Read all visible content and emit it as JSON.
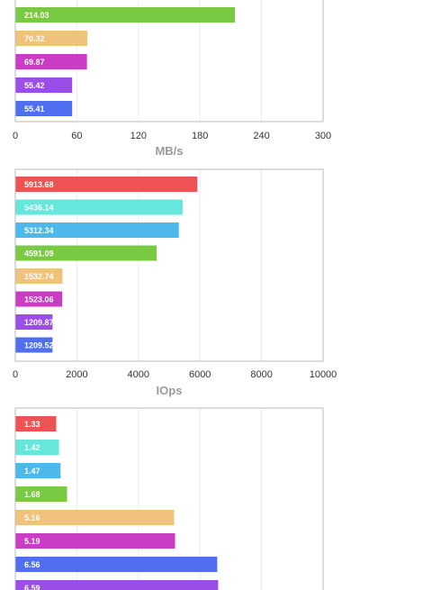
{
  "chart_data": [
    {
      "type": "bar",
      "orientation": "horizontal",
      "xlabel": "MB/s",
      "xlim": [
        0,
        300
      ],
      "xticks": [
        0,
        60,
        120,
        180,
        240,
        300
      ],
      "grid": true,
      "values": [
        214.03,
        70.32,
        69.87,
        55.42,
        55.41
      ],
      "labels": [
        "214.03",
        "70.32",
        "69.87",
        "55.42",
        "55.41"
      ],
      "colors": [
        "#7ac943",
        "#f0c27b",
        "#c93cc3",
        "#9b4de8",
        "#4f6ef0"
      ]
    },
    {
      "type": "bar",
      "orientation": "horizontal",
      "xlabel": "IOps",
      "xlim": [
        0,
        10000
      ],
      "xticks": [
        0,
        2000,
        4000,
        6000,
        8000,
        10000
      ],
      "grid": true,
      "values": [
        5913.68,
        5436.14,
        5312.34,
        4591.09,
        1532.74,
        1523.06,
        1209.87,
        1209.52
      ],
      "labels": [
        "5913.68",
        "5436.14",
        "5312.34",
        "4591.09",
        "1532.74",
        "1523.06",
        "1209.87",
        "1209.52"
      ],
      "colors": [
        "#ee5253",
        "#67e6dc",
        "#4cb9ea",
        "#7ac943",
        "#f0c27b",
        "#c93cc3",
        "#9b4de8",
        "#4f6ef0"
      ]
    },
    {
      "type": "bar",
      "orientation": "horizontal",
      "xlim": [
        0,
        10
      ],
      "grid": true,
      "values": [
        1.33,
        1.42,
        1.47,
        1.68,
        5.16,
        5.19,
        6.56,
        6.59
      ],
      "labels": [
        "1.33",
        "1.42",
        "1.47",
        "1.68",
        "5.16",
        "5.19",
        "6.56",
        "6.59"
      ],
      "colors": [
        "#ee5253",
        "#67e6dc",
        "#4cb9ea",
        "#7ac943",
        "#f0c27b",
        "#c93cc3",
        "#4f6ef0",
        "#9b4de8"
      ]
    }
  ]
}
